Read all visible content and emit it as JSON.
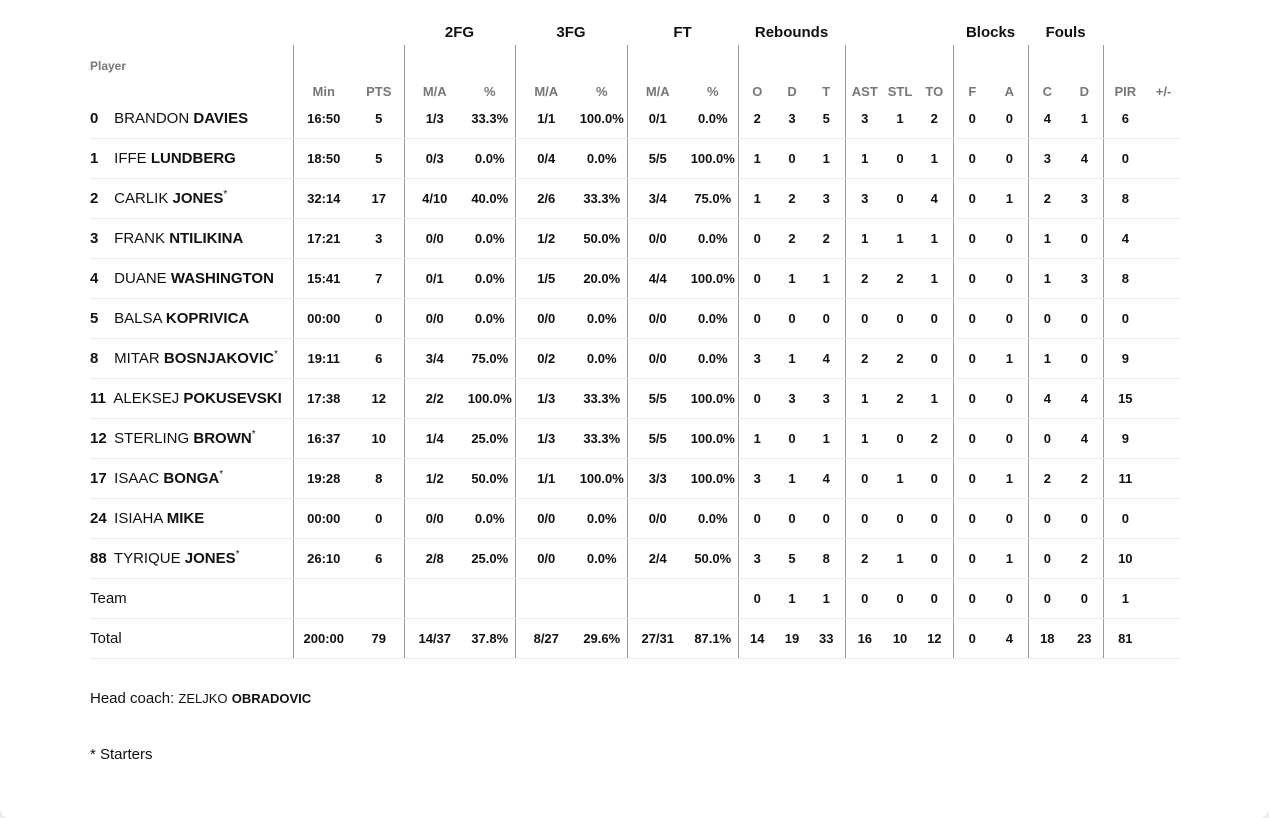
{
  "headers": {
    "groups": {
      "fg2": "2FG",
      "fg3": "3FG",
      "ft": "FT",
      "reb": "Rebounds",
      "blk": "Blocks",
      "fouls": "Fouls"
    },
    "player": "Player",
    "cols": [
      "Min",
      "PTS",
      "M/A",
      "%",
      "M/A",
      "%",
      "M/A",
      "%",
      "O",
      "D",
      "T",
      "AST",
      "STL",
      "TO",
      "F",
      "A",
      "C",
      "D",
      "PIR",
      "+/-"
    ]
  },
  "players": [
    {
      "num": "0",
      "first": "BRANDON",
      "last": "DAVIES",
      "star": "",
      "stats": [
        "16:50",
        "5",
        "1/3",
        "33.3%",
        "1/1",
        "100.0%",
        "0/1",
        "0.0%",
        "2",
        "3",
        "5",
        "3",
        "1",
        "2",
        "0",
        "0",
        "4",
        "1",
        "6",
        ""
      ]
    },
    {
      "num": "1",
      "first": "IFFE",
      "last": "LUNDBERG",
      "star": "",
      "stats": [
        "18:50",
        "5",
        "0/3",
        "0.0%",
        "0/4",
        "0.0%",
        "5/5",
        "100.0%",
        "1",
        "0",
        "1",
        "1",
        "0",
        "1",
        "0",
        "0",
        "3",
        "4",
        "0",
        ""
      ]
    },
    {
      "num": "2",
      "first": "CARLIK",
      "last": "JONES",
      "star": "*",
      "stats": [
        "32:14",
        "17",
        "4/10",
        "40.0%",
        "2/6",
        "33.3%",
        "3/4",
        "75.0%",
        "1",
        "2",
        "3",
        "3",
        "0",
        "4",
        "0",
        "1",
        "2",
        "3",
        "8",
        ""
      ]
    },
    {
      "num": "3",
      "first": "FRANK",
      "last": "NTILIKINA",
      "star": "",
      "stats": [
        "17:21",
        "3",
        "0/0",
        "0.0%",
        "1/2",
        "50.0%",
        "0/0",
        "0.0%",
        "0",
        "2",
        "2",
        "1",
        "1",
        "1",
        "0",
        "0",
        "1",
        "0",
        "4",
        ""
      ]
    },
    {
      "num": "4",
      "first": "DUANE",
      "last": "WASHINGTON",
      "star": "",
      "stats": [
        "15:41",
        "7",
        "0/1",
        "0.0%",
        "1/5",
        "20.0%",
        "4/4",
        "100.0%",
        "0",
        "1",
        "1",
        "2",
        "2",
        "1",
        "0",
        "0",
        "1",
        "3",
        "8",
        ""
      ]
    },
    {
      "num": "5",
      "first": "BALSA",
      "last": "KOPRIVICA",
      "star": "",
      "stats": [
        "00:00",
        "0",
        "0/0",
        "0.0%",
        "0/0",
        "0.0%",
        "0/0",
        "0.0%",
        "0",
        "0",
        "0",
        "0",
        "0",
        "0",
        "0",
        "0",
        "0",
        "0",
        "0",
        ""
      ]
    },
    {
      "num": "8",
      "first": "MITAR",
      "last": "BOSNJAKOVIC",
      "star": "*",
      "stats": [
        "19:11",
        "6",
        "3/4",
        "75.0%",
        "0/2",
        "0.0%",
        "0/0",
        "0.0%",
        "3",
        "1",
        "4",
        "2",
        "2",
        "0",
        "0",
        "1",
        "1",
        "0",
        "9",
        ""
      ]
    },
    {
      "num": "11",
      "first": "ALEKSEJ",
      "last": "POKUSEVSKI",
      "star": "",
      "stats": [
        "17:38",
        "12",
        "2/2",
        "100.0%",
        "1/3",
        "33.3%",
        "5/5",
        "100.0%",
        "0",
        "3",
        "3",
        "1",
        "2",
        "1",
        "0",
        "0",
        "4",
        "4",
        "15",
        ""
      ]
    },
    {
      "num": "12",
      "first": "STERLING",
      "last": "BROWN",
      "star": "*",
      "stats": [
        "16:37",
        "10",
        "1/4",
        "25.0%",
        "1/3",
        "33.3%",
        "5/5",
        "100.0%",
        "1",
        "0",
        "1",
        "1",
        "0",
        "2",
        "0",
        "0",
        "0",
        "4",
        "9",
        ""
      ]
    },
    {
      "num": "17",
      "first": "ISAAC",
      "last": "BONGA",
      "star": "*",
      "stats": [
        "19:28",
        "8",
        "1/2",
        "50.0%",
        "1/1",
        "100.0%",
        "3/3",
        "100.0%",
        "3",
        "1",
        "4",
        "0",
        "1",
        "0",
        "0",
        "1",
        "2",
        "2",
        "11",
        ""
      ]
    },
    {
      "num": "24",
      "first": "ISIAHA",
      "last": "MIKE",
      "star": "",
      "stats": [
        "00:00",
        "0",
        "0/0",
        "0.0%",
        "0/0",
        "0.0%",
        "0/0",
        "0.0%",
        "0",
        "0",
        "0",
        "0",
        "0",
        "0",
        "0",
        "0",
        "0",
        "0",
        "0",
        ""
      ]
    },
    {
      "num": "88",
      "first": "TYRIQUE",
      "last": "JONES",
      "star": "*",
      "stats": [
        "26:10",
        "6",
        "2/8",
        "25.0%",
        "0/0",
        "0.0%",
        "2/4",
        "50.0%",
        "3",
        "5",
        "8",
        "2",
        "1",
        "0",
        "0",
        "1",
        "0",
        "2",
        "10",
        ""
      ]
    }
  ],
  "team": {
    "label": "Team",
    "stats": [
      "",
      "",
      "",
      "",
      "",
      "",
      "",
      "",
      "0",
      "1",
      "1",
      "0",
      "0",
      "0",
      "0",
      "0",
      "0",
      "0",
      "1",
      ""
    ]
  },
  "total": {
    "label": "Total",
    "stats": [
      "200:00",
      "79",
      "14/37",
      "37.8%",
      "8/27",
      "29.6%",
      "27/31",
      "87.1%",
      "14",
      "19",
      "33",
      "16",
      "10",
      "12",
      "0",
      "4",
      "18",
      "23",
      "81",
      ""
    ]
  },
  "coach": {
    "label": "Head coach:",
    "first": "ZELJKO",
    "last": "OBRADOVIC"
  },
  "footnote": "* Starters"
}
